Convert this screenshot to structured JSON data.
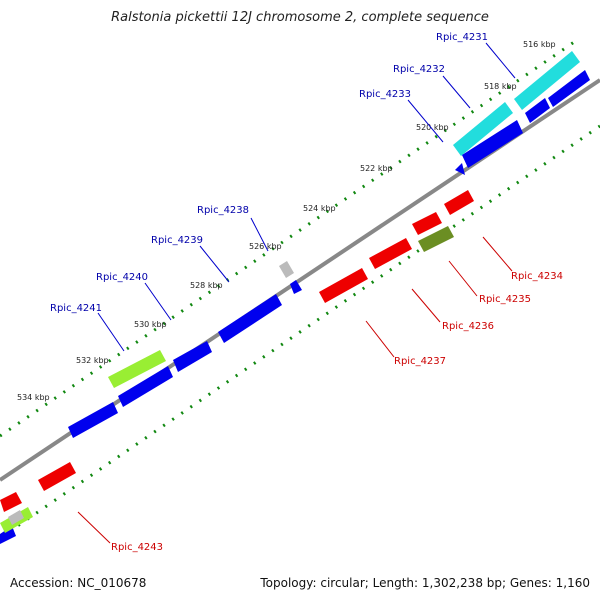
{
  "title": "Ralstonia pickettii 12J chromosome 2, complete sequence",
  "footer": {
    "accession": "Accession: NC_010678",
    "topology": "Topology: circular; Length: 1,302,238 bp; Genes: 1,160"
  },
  "colors": {
    "forward": "#0000ee",
    "reverse": "#ee0000",
    "cyan": "#22dddd",
    "lime": "#99ee33",
    "olive": "#6b8e23",
    "grey": "#bbbbbb",
    "backbone": "#888888",
    "dots": "#118811",
    "label_forward": "#0000aa",
    "label_reverse": "#cc0000"
  },
  "ticks": [
    "516 kbp",
    "518 kbp",
    "520 kbp",
    "522 kbp",
    "524 kbp",
    "526 kbp",
    "528 kbp",
    "530 kbp",
    "532 kbp",
    "534 kbp"
  ],
  "genes_forward": [
    "Rpic_4231",
    "Rpic_4232",
    "Rpic_4233",
    "Rpic_4238",
    "Rpic_4239",
    "Rpic_4240",
    "Rpic_4241"
  ],
  "genes_reverse": [
    "Rpic_4234",
    "Rpic_4235",
    "Rpic_4236",
    "Rpic_4237",
    "Rpic_4243"
  ]
}
